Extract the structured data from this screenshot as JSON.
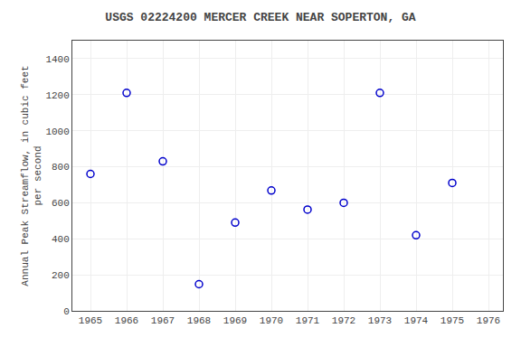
{
  "chart_data": {
    "type": "scatter",
    "title": "USGS 02224200 MERCER CREEK NEAR SOPERTON, GA",
    "y_label": "Annual Peak Streamflow, in cubic feet\nper second",
    "x": [
      1965,
      1966,
      1967,
      1968,
      1969,
      1970,
      1971,
      1972,
      1973,
      1974,
      1975
    ],
    "values": [
      760,
      1210,
      830,
      148,
      490,
      668,
      562,
      600,
      1210,
      420,
      710
    ],
    "xlim": [
      1964.5,
      1976.4
    ],
    "xticks": [
      1965,
      1966,
      1967,
      1968,
      1969,
      1970,
      1971,
      1972,
      1973,
      1974,
      1975,
      1976
    ],
    "ylim": [
      0,
      1500
    ],
    "yticks": [
      0,
      200,
      400,
      600,
      800,
      1000,
      1200,
      1400
    ],
    "color": "#0000cc",
    "marker": "circle-open",
    "grid": true
  }
}
